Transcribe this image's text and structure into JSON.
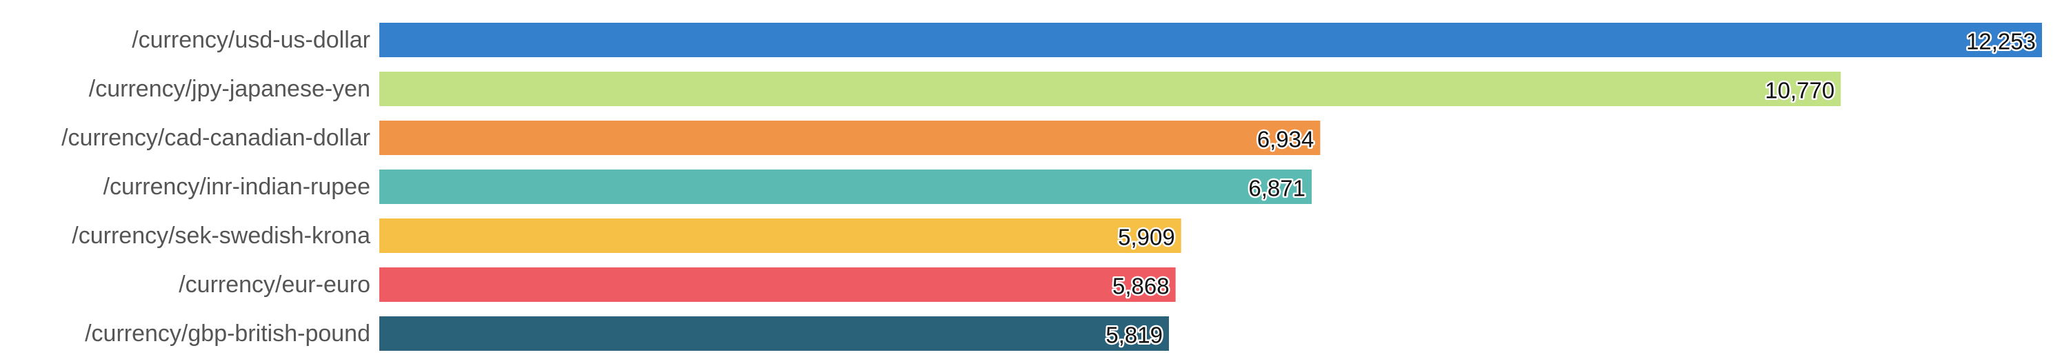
{
  "chart_data": {
    "type": "bar",
    "orientation": "horizontal",
    "categories": [
      "/currency/usd-us-dollar",
      "/currency/jpy-japanese-yen",
      "/currency/cad-canadian-dollar",
      "/currency/inr-indian-rupee",
      "/currency/sek-swedish-krona",
      "/currency/eur-euro",
      "/currency/gbp-british-pound"
    ],
    "values": [
      12253,
      10770,
      6934,
      6871,
      5909,
      5868,
      5819
    ],
    "value_labels": [
      "12,253",
      "10,770",
      "6,934",
      "6,871",
      "5,909",
      "5,868",
      "5,819"
    ],
    "colors": [
      "#3580cc",
      "#c2e185",
      "#f09448",
      "#5bbab1",
      "#f6bf46",
      "#ef5b62",
      "#2a6379"
    ],
    "title": "",
    "xlabel": "",
    "ylabel": "",
    "xlim": [
      0,
      12253
    ],
    "grid": false,
    "legend": "none"
  }
}
